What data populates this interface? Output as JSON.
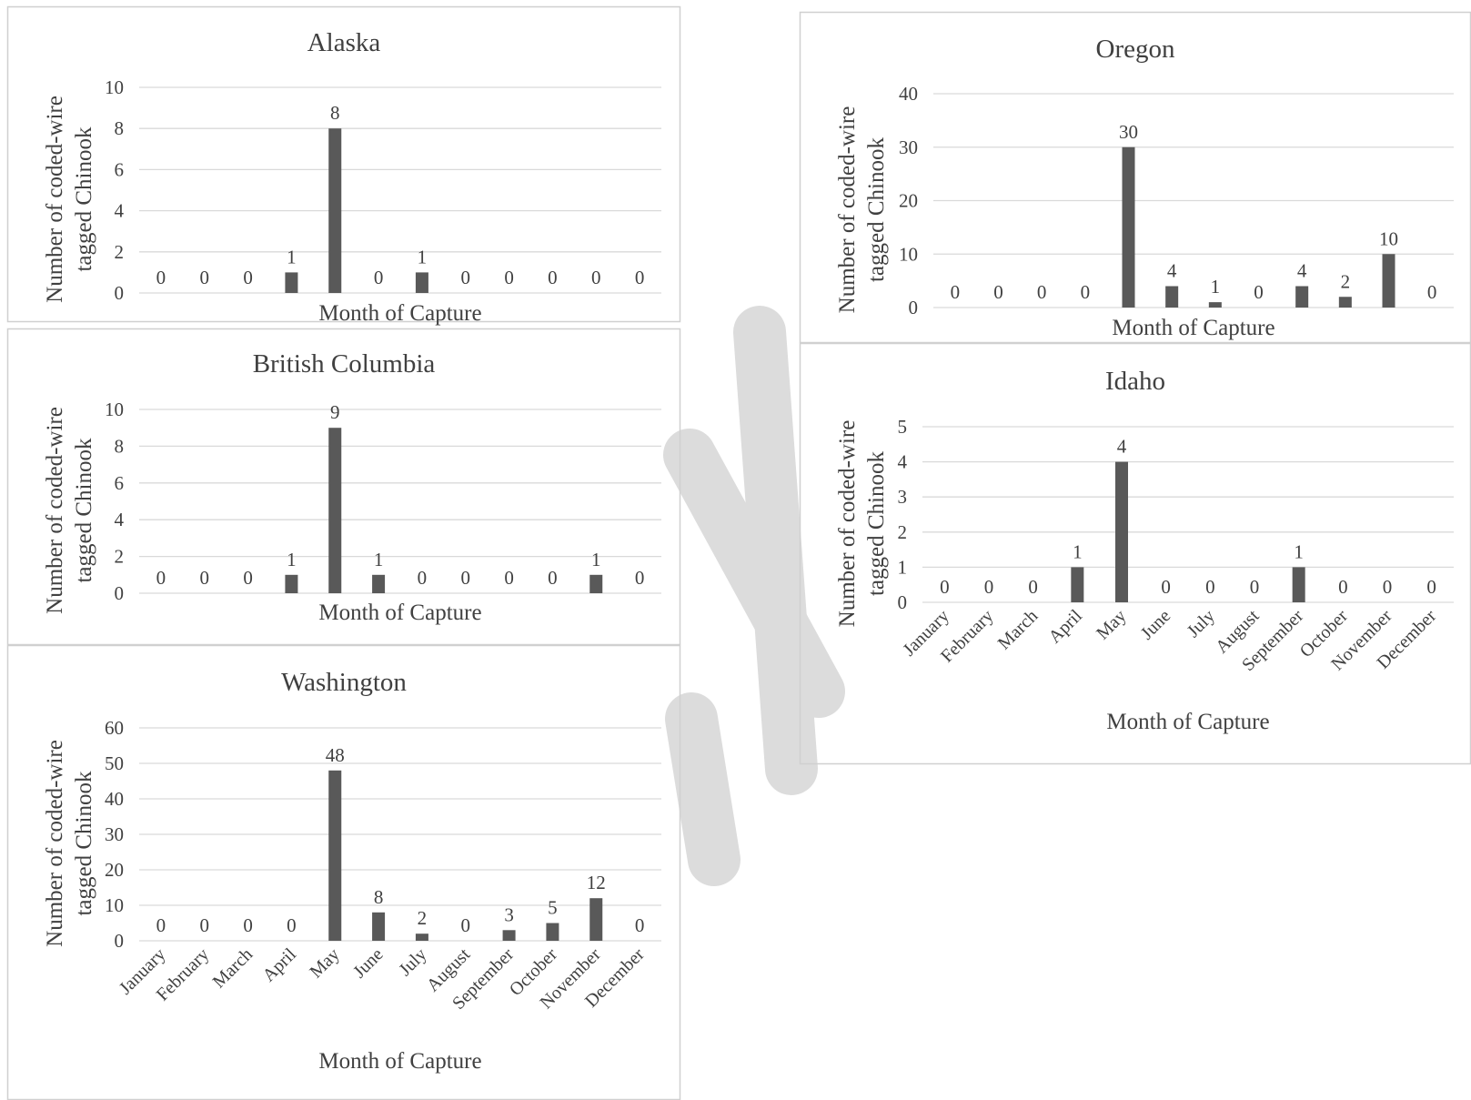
{
  "colors": {
    "bar": "#595959",
    "grid": "#d9d9d9",
    "text": "#404040",
    "frame": "#d0d0d0",
    "watermark": "#dcdcdc"
  },
  "months": [
    "January",
    "February",
    "March",
    "April",
    "May",
    "June",
    "July",
    "August",
    "September",
    "October",
    "November",
    "December"
  ],
  "chart_data": [
    {
      "type": "bar",
      "title": "Alaska",
      "xlabel": "Month of Capture",
      "ylabel": [
        "Number of coded-wire",
        "tagged Chinook"
      ],
      "ylim": [
        0,
        10
      ],
      "yticks": [
        0,
        2,
        4,
        6,
        8,
        10
      ],
      "values": [
        0,
        0,
        0,
        1,
        8,
        0,
        1,
        0,
        0,
        0,
        0,
        0
      ],
      "show_month_labels": false,
      "grid": true,
      "legend": "none"
    },
    {
      "type": "bar",
      "title": "British Columbia",
      "xlabel": "Month of Capture",
      "ylabel": [
        "Number of coded-wire",
        "tagged Chinook"
      ],
      "ylim": [
        0,
        10
      ],
      "yticks": [
        0,
        2,
        4,
        6,
        8,
        10
      ],
      "values": [
        0,
        0,
        0,
        1,
        9,
        1,
        0,
        0,
        0,
        0,
        1,
        0
      ],
      "show_month_labels": false,
      "grid": true,
      "legend": "none"
    },
    {
      "type": "bar",
      "title": "Washington",
      "xlabel": "Month of Capture",
      "ylabel": [
        "Number of coded-wire",
        "tagged Chinook"
      ],
      "ylim": [
        0,
        60
      ],
      "yticks": [
        0,
        10,
        20,
        30,
        40,
        50,
        60
      ],
      "values": [
        0,
        0,
        0,
        0,
        48,
        8,
        2,
        0,
        3,
        5,
        12,
        0
      ],
      "show_month_labels": true,
      "grid": true,
      "legend": "none"
    },
    {
      "type": "bar",
      "title": "Oregon",
      "xlabel": "Month of Capture",
      "ylabel": [
        "Number of coded-wire",
        "tagged Chinook"
      ],
      "ylim": [
        0,
        40
      ],
      "yticks": [
        0,
        10,
        20,
        30,
        40
      ],
      "values": [
        0,
        0,
        0,
        0,
        30,
        4,
        1,
        0,
        4,
        2,
        10,
        0
      ],
      "show_month_labels": false,
      "grid": true,
      "legend": "none"
    },
    {
      "type": "bar",
      "title": "Idaho",
      "xlabel": "Month of Capture",
      "ylabel": [
        "Number of coded-wire",
        "tagged Chinook"
      ],
      "ylim": [
        0,
        5
      ],
      "yticks": [
        0,
        1,
        2,
        3,
        4,
        5
      ],
      "values": [
        0,
        0,
        0,
        1,
        4,
        0,
        0,
        0,
        1,
        0,
        0,
        0
      ],
      "show_month_labels": true,
      "grid": true,
      "legend": "none"
    }
  ]
}
